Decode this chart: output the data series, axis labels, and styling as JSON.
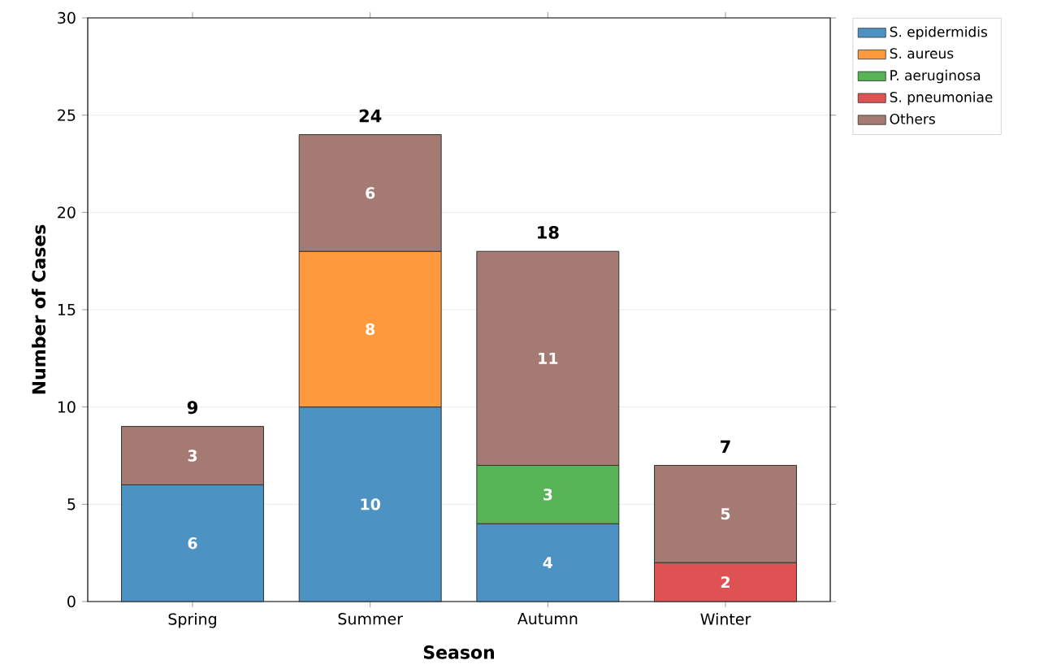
{
  "chart_data": {
    "type": "bar",
    "stacked": true,
    "xlabel": "Season",
    "ylabel": "Number of Cases",
    "categories": [
      "Spring",
      "Summer",
      "Autumn",
      "Winter"
    ],
    "series": [
      {
        "name": "S. epidermidis",
        "color": "#4c92c3",
        "values": [
          6,
          10,
          4,
          null
        ],
        "value_labels": [
          "6",
          "10",
          "4",
          null
        ]
      },
      {
        "name": "S. aureus",
        "color": "#ff993e",
        "values": [
          null,
          8,
          null,
          null
        ],
        "value_labels": [
          null,
          "8",
          null,
          null
        ]
      },
      {
        "name": "P. aeruginosa",
        "color": "#56b356",
        "values": [
          null,
          null,
          3,
          null
        ],
        "value_labels": [
          null,
          null,
          "3",
          null
        ]
      },
      {
        "name": "S. pneumoniae",
        "color": "#de5253",
        "values": [
          null,
          null,
          null,
          2
        ],
        "value_labels": [
          null,
          null,
          null,
          "2"
        ]
      },
      {
        "name": "Others",
        "color": "#a57a72",
        "values": [
          3,
          6,
          11,
          5
        ],
        "value_labels": [
          "3",
          "6",
          "11",
          "5"
        ]
      }
    ],
    "totals": [
      "9",
      "24",
      "18",
      "7"
    ],
    "ylim": [
      0,
      30
    ],
    "yticks": [
      0,
      5,
      10,
      15,
      20,
      25,
      30
    ],
    "grid": "y",
    "legend": "top right"
  }
}
